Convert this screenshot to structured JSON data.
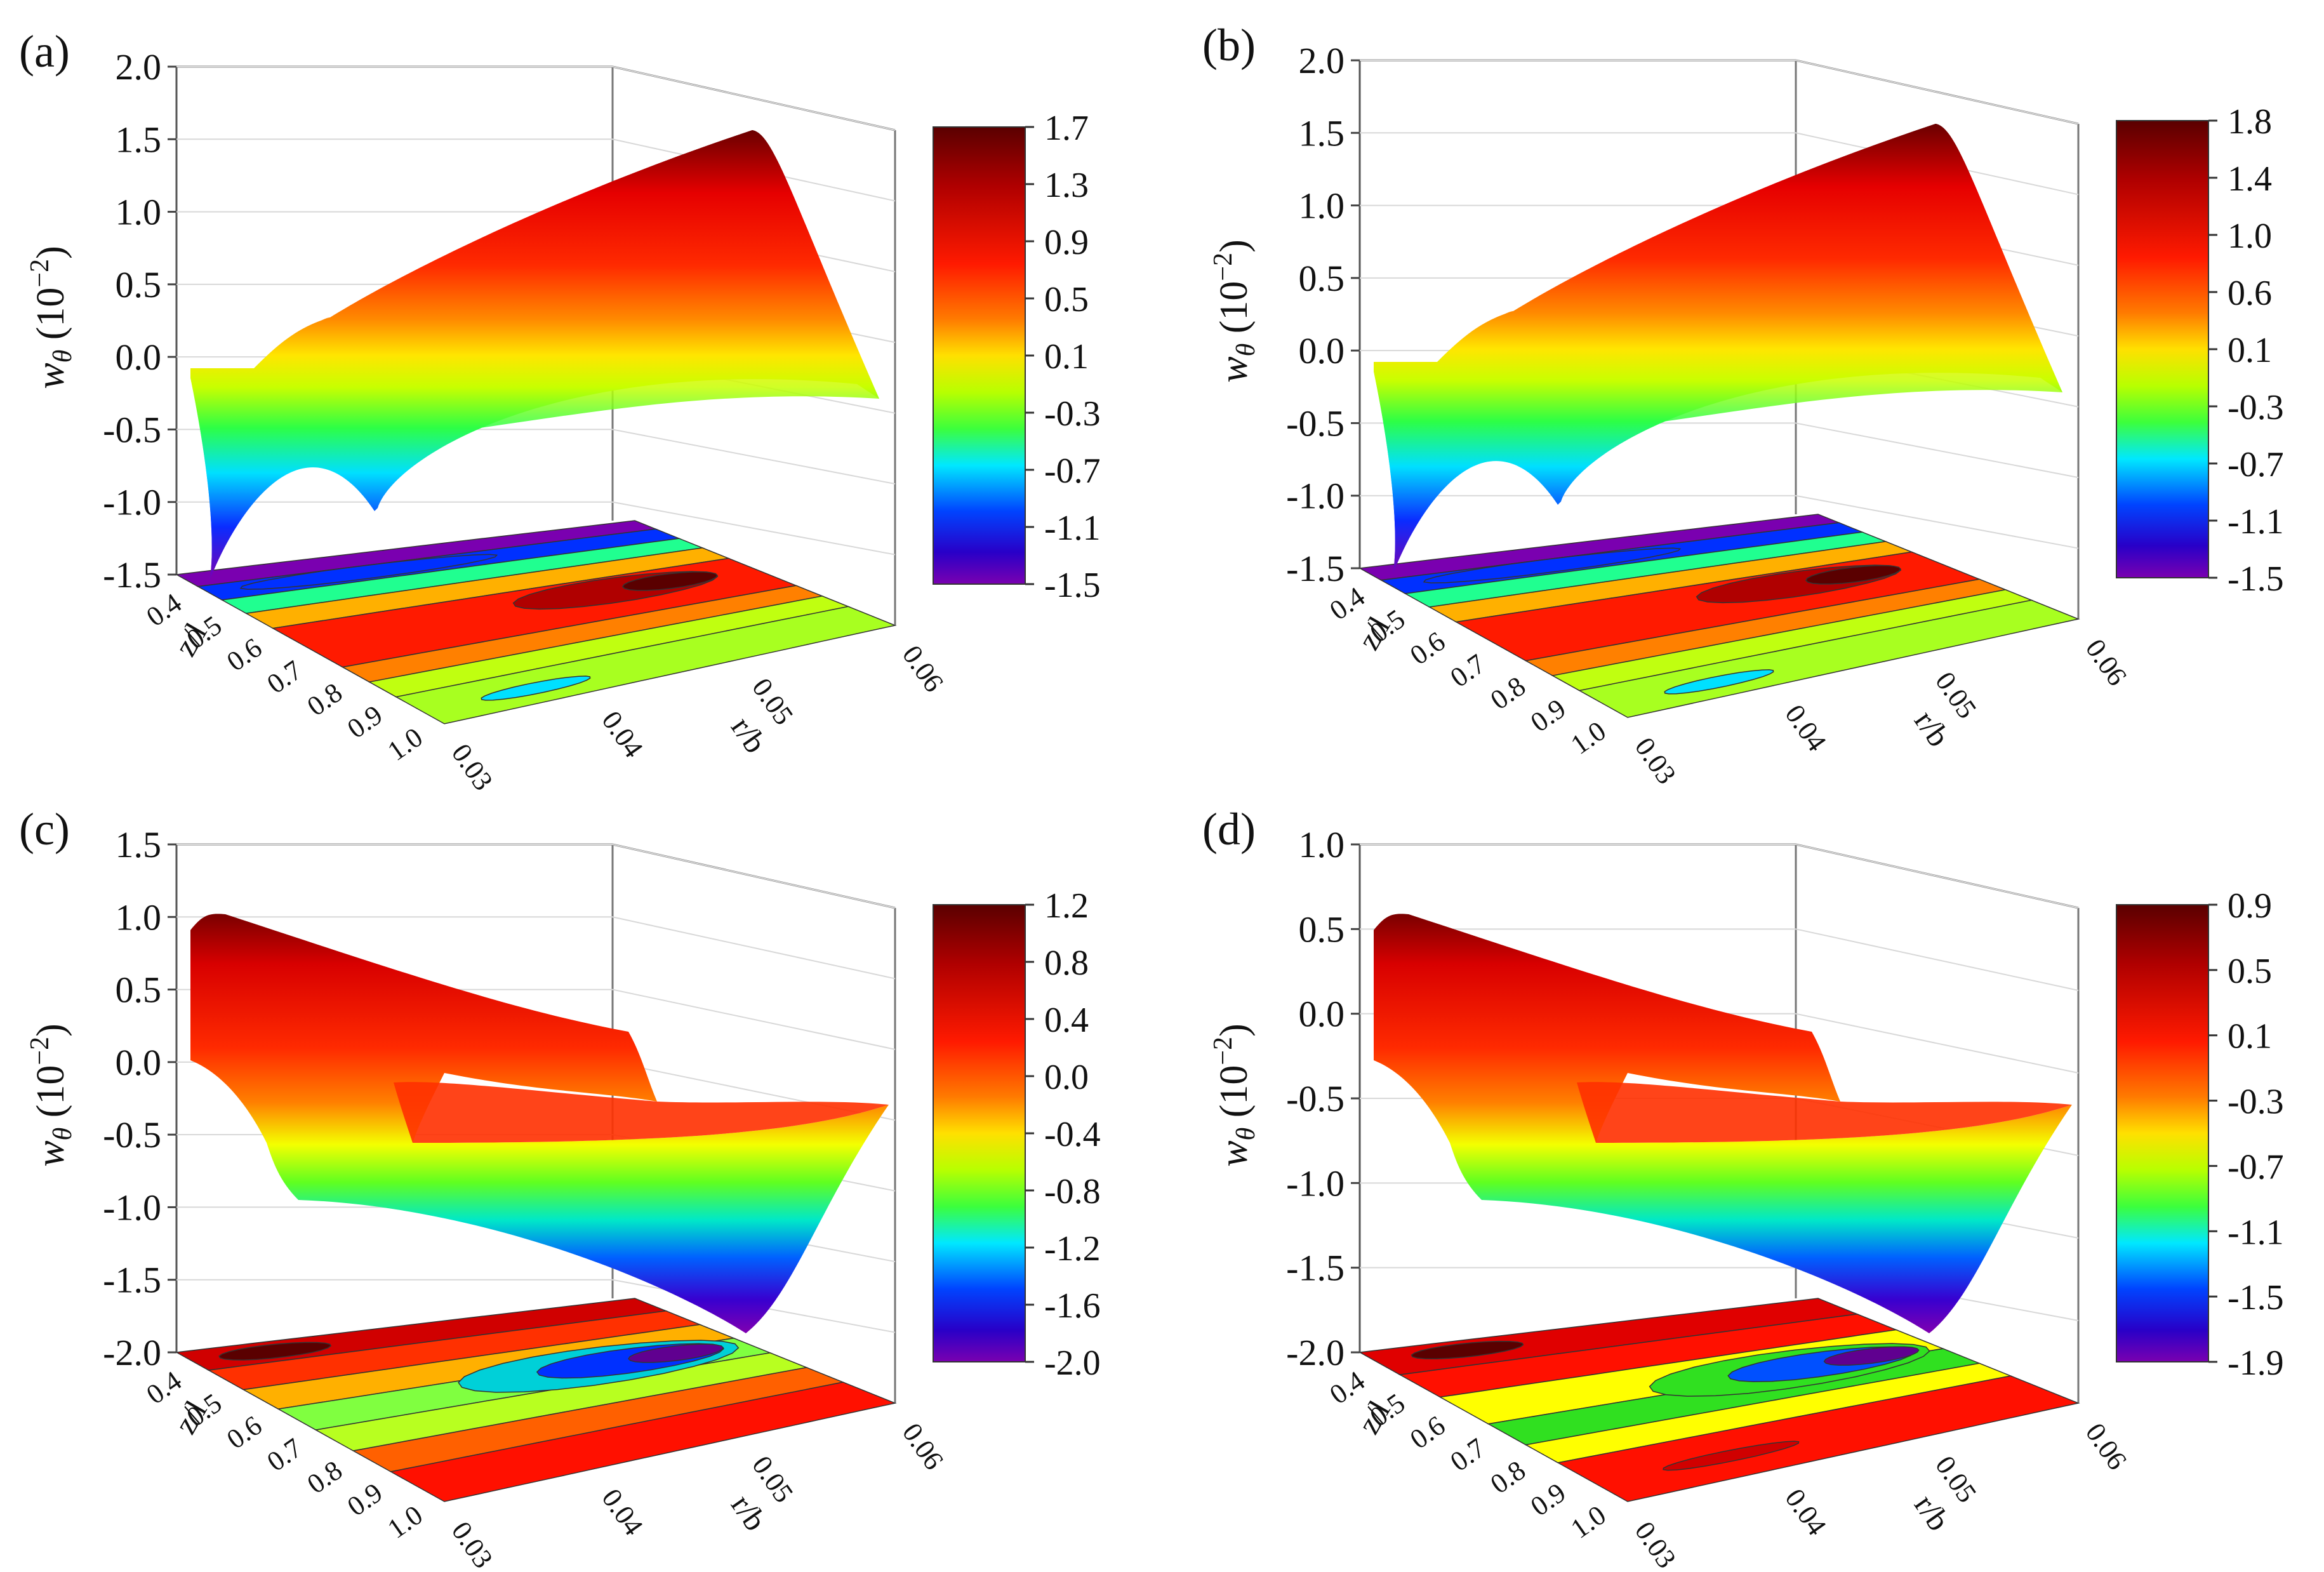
{
  "chart_data": [
    {
      "panel_label": "(a)",
      "type": "surface3d",
      "z_ticks": [
        "2.0",
        "1.5",
        "1.0",
        "0.5",
        "0.0",
        "-0.5",
        "-1.0",
        "-1.5"
      ],
      "z_range": [
        -1.5,
        2.0
      ],
      "z_label_var": "w",
      "z_label_sub": "θ",
      "z_label_unit": "(10",
      "z_label_exp": "−2",
      "z_label_close": ")",
      "y_label": "z/l",
      "y_ticks": [
        "0.4",
        "0.5",
        "0.6",
        "0.7",
        "0.8",
        "0.9",
        "1.0"
      ],
      "x_label": "r/b",
      "x_ticks": [
        "0.03",
        "0.04",
        "0.05",
        "0.06"
      ],
      "colorbar_ticks": [
        "1.7",
        "1.3",
        "0.9",
        "0.5",
        "0.1",
        "-0.3",
        "-0.7",
        "-1.1",
        "-1.5"
      ],
      "colorbar_range": [
        -1.5,
        1.7
      ],
      "surface_profile": "rising",
      "contour_scheme": "a"
    },
    {
      "panel_label": "(b)",
      "type": "surface3d",
      "z_ticks": [
        "2.0",
        "1.5",
        "1.0",
        "0.5",
        "0.0",
        "-0.5",
        "-1.0",
        "-1.5"
      ],
      "z_range": [
        -1.5,
        2.0
      ],
      "z_label_var": "w",
      "z_label_sub": "θ",
      "z_label_unit": "(10",
      "z_label_exp": "−2",
      "z_label_close": ")",
      "y_label": "z/l",
      "y_ticks": [
        "0.4",
        "0.5",
        "0.6",
        "0.7",
        "0.8",
        "0.9",
        "1.0"
      ],
      "x_label": "r/b",
      "x_ticks": [
        "0.03",
        "0.04",
        "0.05",
        "0.06"
      ],
      "colorbar_ticks": [
        "1.8",
        "1.4",
        "1.0",
        "0.6",
        "0.1",
        "-0.3",
        "-0.7",
        "-1.1",
        "-1.5"
      ],
      "colorbar_range": [
        -1.5,
        1.8
      ],
      "surface_profile": "rising",
      "contour_scheme": "a"
    },
    {
      "panel_label": "(c)",
      "type": "surface3d",
      "z_ticks": [
        "1.5",
        "1.0",
        "0.5",
        "0.0",
        "-0.5",
        "-1.0",
        "-1.5",
        "-2.0"
      ],
      "z_range": [
        -2.0,
        1.5
      ],
      "z_label_var": "w",
      "z_label_sub": "θ",
      "z_label_unit": "(10",
      "z_label_exp": "−2",
      "z_label_close": ")",
      "y_label": "z/l",
      "y_ticks": [
        "0.4",
        "0.5",
        "0.6",
        "0.7",
        "0.8",
        "0.9",
        "1.0"
      ],
      "x_label": "r/b",
      "x_ticks": [
        "0.03",
        "0.04",
        "0.05",
        "0.06"
      ],
      "colorbar_ticks": [
        "1.2",
        "0.8",
        "0.4",
        "0.0",
        "-0.4",
        "-0.8",
        "-1.2",
        "-1.6",
        "-2.0"
      ],
      "colorbar_range": [
        -2.0,
        1.2
      ],
      "surface_profile": "falling",
      "contour_scheme": "c"
    },
    {
      "panel_label": "(d)",
      "type": "surface3d",
      "z_ticks": [
        "1.0",
        "0.5",
        "0.0",
        "-0.5",
        "-1.0",
        "-1.5",
        "-2.0"
      ],
      "z_range": [
        -2.0,
        1.0
      ],
      "z_label_var": "w",
      "z_label_sub": "θ",
      "z_label_unit": "(10",
      "z_label_exp": "−2",
      "z_label_close": ")",
      "y_label": "z/l",
      "y_ticks": [
        "0.4",
        "0.5",
        "0.6",
        "0.7",
        "0.8",
        "0.9",
        "1.0"
      ],
      "x_label": "r/b",
      "x_ticks": [
        "0.03",
        "0.04",
        "0.05",
        "0.06"
      ],
      "colorbar_ticks": [
        "0.9",
        "0.5",
        "0.1",
        "-0.3",
        "-0.7",
        "-1.1",
        "-1.5",
        "-1.9"
      ],
      "colorbar_range": [
        -1.9,
        0.9
      ],
      "surface_profile": "falling",
      "contour_scheme": "d"
    }
  ]
}
